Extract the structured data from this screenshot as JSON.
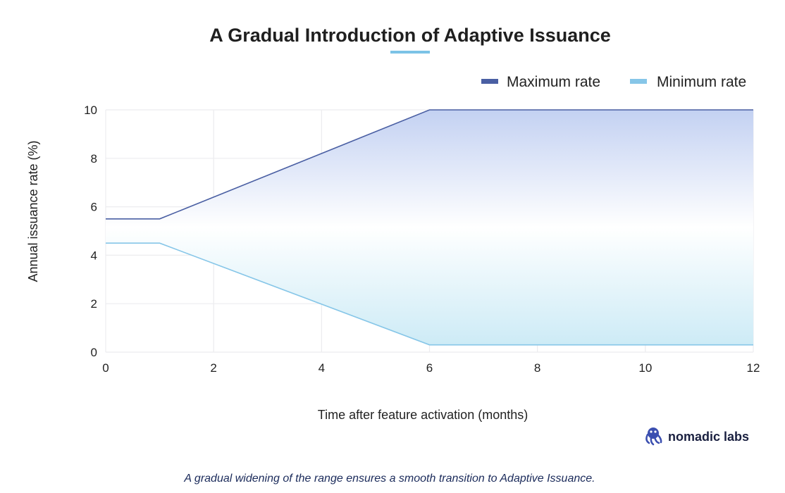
{
  "chart_data": {
    "type": "area",
    "title": "A Gradual Introduction of Adaptive Issuance",
    "xlabel": "Time after feature activation (months)",
    "ylabel": "Annual issuance rate (%)",
    "xlim": [
      0,
      12
    ],
    "ylim": [
      0,
      10
    ],
    "x_ticks": [
      0,
      2,
      4,
      6,
      8,
      10,
      12
    ],
    "y_ticks": [
      0,
      2,
      4,
      6,
      8,
      10
    ],
    "grid": true,
    "legend": "top-right",
    "series": [
      {
        "name": "Maximum rate",
        "color": "#4a5fa3",
        "x": [
          0,
          1,
          6,
          12
        ],
        "values": [
          5.5,
          5.5,
          10,
          10
        ]
      },
      {
        "name": "Minimum rate",
        "color": "#86c6e8",
        "x": [
          0,
          1,
          6,
          12
        ],
        "values": [
          4.5,
          4.5,
          0.3,
          0.3
        ]
      }
    ],
    "fill_colors": {
      "top": "#c3d1f2",
      "middle": "#ffffff",
      "bottom": "#cdebf6"
    }
  },
  "title_accent_color": "#7cc3e6",
  "brand": {
    "name": "nomadic labs",
    "icon": "octopus-logo-icon"
  },
  "caption": "A gradual widening of the range ensures a smooth transition to Adaptive Issuance."
}
